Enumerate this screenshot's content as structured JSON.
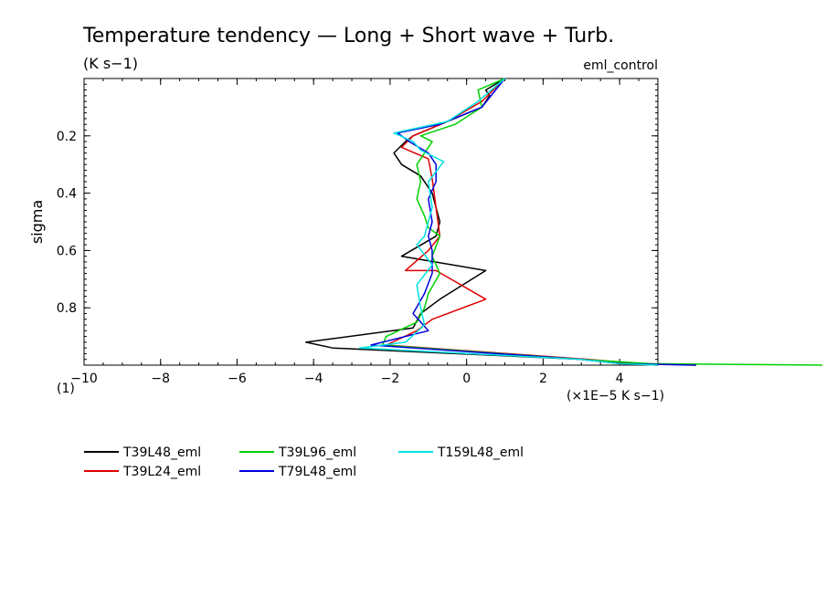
{
  "chart_data": {
    "type": "line",
    "title": "Temperature tendency — Long + Short wave + Turb.",
    "units": "(K s−1)",
    "experiment": "eml_control",
    "ylabel": "sigma",
    "xunits": "(×1E−5 K s−1)",
    "figure_number": "(1)",
    "xlim": [
      -10,
      5
    ],
    "ylim": [
      1.0,
      0.0
    ],
    "y_inverted": true,
    "x_ticks": [
      -10,
      -8,
      -6,
      -4,
      -2,
      0,
      2,
      4
    ],
    "x_tick_labels": [
      "−10",
      "−8",
      "−6",
      "−4",
      "−2",
      "0",
      "2",
      "4"
    ],
    "y_ticks": [
      0.2,
      0.4,
      0.6,
      0.8
    ],
    "y_tick_labels": [
      "0.2",
      "0.4",
      "0.6",
      "0.8"
    ],
    "grid": false,
    "legend_position": "bottom",
    "series": [
      {
        "name": "T39L48_eml",
        "color": "#000000",
        "points": [
          [
            1.0,
            0.0
          ],
          [
            0.5,
            0.04
          ],
          [
            0.6,
            0.06
          ],
          [
            0.4,
            0.1
          ],
          [
            -0.5,
            0.15
          ],
          [
            -1.4,
            0.2
          ],
          [
            -1.6,
            0.22
          ],
          [
            -1.9,
            0.26
          ],
          [
            -1.7,
            0.3
          ],
          [
            -1.2,
            0.34
          ],
          [
            -0.9,
            0.4
          ],
          [
            -0.8,
            0.45
          ],
          [
            -0.7,
            0.5
          ],
          [
            -0.8,
            0.55
          ],
          [
            -1.7,
            0.62
          ],
          [
            0.5,
            0.67
          ],
          [
            -0.7,
            0.77
          ],
          [
            -1.2,
            0.82
          ],
          [
            -1.4,
            0.87
          ],
          [
            -4.2,
            0.92
          ],
          [
            -3.5,
            0.94
          ],
          [
            3.0,
            0.98
          ],
          [
            4.2,
            0.995
          ],
          [
            5.0,
            1.0
          ]
        ]
      },
      {
        "name": "T39L24_eml",
        "color": "#e00000",
        "points": [
          [
            1.0,
            0.0
          ],
          [
            0.4,
            0.08
          ],
          [
            -0.5,
            0.15
          ],
          [
            -1.4,
            0.2
          ],
          [
            -1.7,
            0.24
          ],
          [
            -1.0,
            0.28
          ],
          [
            -0.9,
            0.35
          ],
          [
            -0.8,
            0.45
          ],
          [
            -0.7,
            0.55
          ],
          [
            -1.0,
            0.6
          ],
          [
            -1.6,
            0.67
          ],
          [
            -0.8,
            0.67
          ],
          [
            0.5,
            0.77
          ],
          [
            -0.9,
            0.84
          ],
          [
            -1.3,
            0.88
          ],
          [
            -2.1,
            0.93
          ],
          [
            3.2,
            0.98
          ],
          [
            4.5,
            0.995
          ],
          [
            6.0,
            1.0
          ]
        ]
      },
      {
        "name": "T39L96_eml",
        "color": "#00d000",
        "points": [
          [
            1.0,
            0.0
          ],
          [
            0.3,
            0.04
          ],
          [
            0.4,
            0.1
          ],
          [
            -0.3,
            0.16
          ],
          [
            -1.2,
            0.2
          ],
          [
            -0.9,
            0.22
          ],
          [
            -1.0,
            0.24
          ],
          [
            -1.3,
            0.3
          ],
          [
            -1.2,
            0.36
          ],
          [
            -1.3,
            0.42
          ],
          [
            -1.1,
            0.48
          ],
          [
            -1.0,
            0.52
          ],
          [
            -0.7,
            0.55
          ],
          [
            -0.9,
            0.62
          ],
          [
            -0.7,
            0.68
          ],
          [
            -1.0,
            0.75
          ],
          [
            -1.1,
            0.8
          ],
          [
            -1.3,
            0.85
          ],
          [
            -2.1,
            0.9
          ],
          [
            -2.2,
            0.93
          ],
          [
            3.0,
            0.98
          ],
          [
            4.8,
            0.995
          ],
          [
            9.3,
            1.0
          ]
        ]
      },
      {
        "name": "T79L48_eml",
        "color": "#0000e0",
        "points": [
          [
            1.0,
            0.0
          ],
          [
            0.4,
            0.1
          ],
          [
            -0.7,
            0.16
          ],
          [
            -1.8,
            0.19
          ],
          [
            -1.5,
            0.22
          ],
          [
            -1.0,
            0.26
          ],
          [
            -0.8,
            0.3
          ],
          [
            -0.8,
            0.36
          ],
          [
            -1.0,
            0.42
          ],
          [
            -0.9,
            0.5
          ],
          [
            -1.0,
            0.55
          ],
          [
            -0.9,
            0.6
          ],
          [
            -0.9,
            0.68
          ],
          [
            -1.1,
            0.75
          ],
          [
            -1.4,
            0.82
          ],
          [
            -1.0,
            0.88
          ],
          [
            -2.5,
            0.93
          ],
          [
            3.0,
            0.98
          ],
          [
            4.0,
            0.995
          ],
          [
            6.0,
            1.0
          ]
        ]
      },
      {
        "name": "T159L48_eml",
        "color": "#00e0e0",
        "points": [
          [
            1.0,
            0.0
          ],
          [
            0.3,
            0.08
          ],
          [
            -0.5,
            0.15
          ],
          [
            -1.9,
            0.19
          ],
          [
            -1.4,
            0.22
          ],
          [
            -1.2,
            0.25
          ],
          [
            -0.6,
            0.29
          ],
          [
            -1.0,
            0.36
          ],
          [
            -0.9,
            0.45
          ],
          [
            -1.1,
            0.55
          ],
          [
            -1.3,
            0.58
          ],
          [
            -0.9,
            0.65
          ],
          [
            -1.3,
            0.72
          ],
          [
            -1.2,
            0.8
          ],
          [
            -1.1,
            0.86
          ],
          [
            -1.6,
            0.92
          ],
          [
            -2.8,
            0.94
          ],
          [
            3.0,
            0.98
          ],
          [
            4.0,
            0.995
          ],
          [
            5.0,
            1.0
          ]
        ]
      }
    ]
  }
}
